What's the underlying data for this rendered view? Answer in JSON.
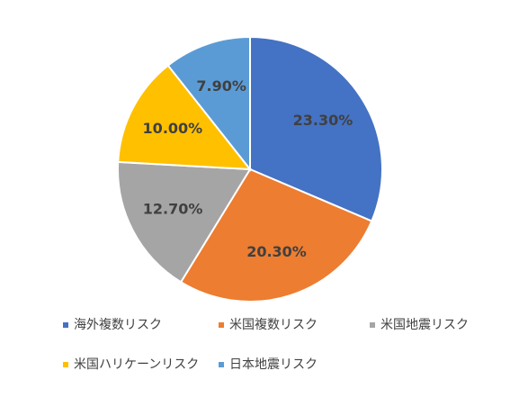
{
  "chart_data": {
    "type": "pie",
    "categories": [
      "海外複数リスク",
      "米国複数リスク",
      "米国地震リスク",
      "米国ハリケーンリスク",
      "日本地震リスク"
    ],
    "values": [
      23.3,
      20.3,
      12.7,
      10.0,
      7.9
    ],
    "value_labels": [
      "23.30%",
      "20.30%",
      "12.70%",
      "10.00%",
      "7.90%"
    ],
    "colors": [
      "#4472c4",
      "#ed7d31",
      "#a5a5a5",
      "#ffc000",
      "#5b9bd5"
    ],
    "legend": "bottom"
  }
}
